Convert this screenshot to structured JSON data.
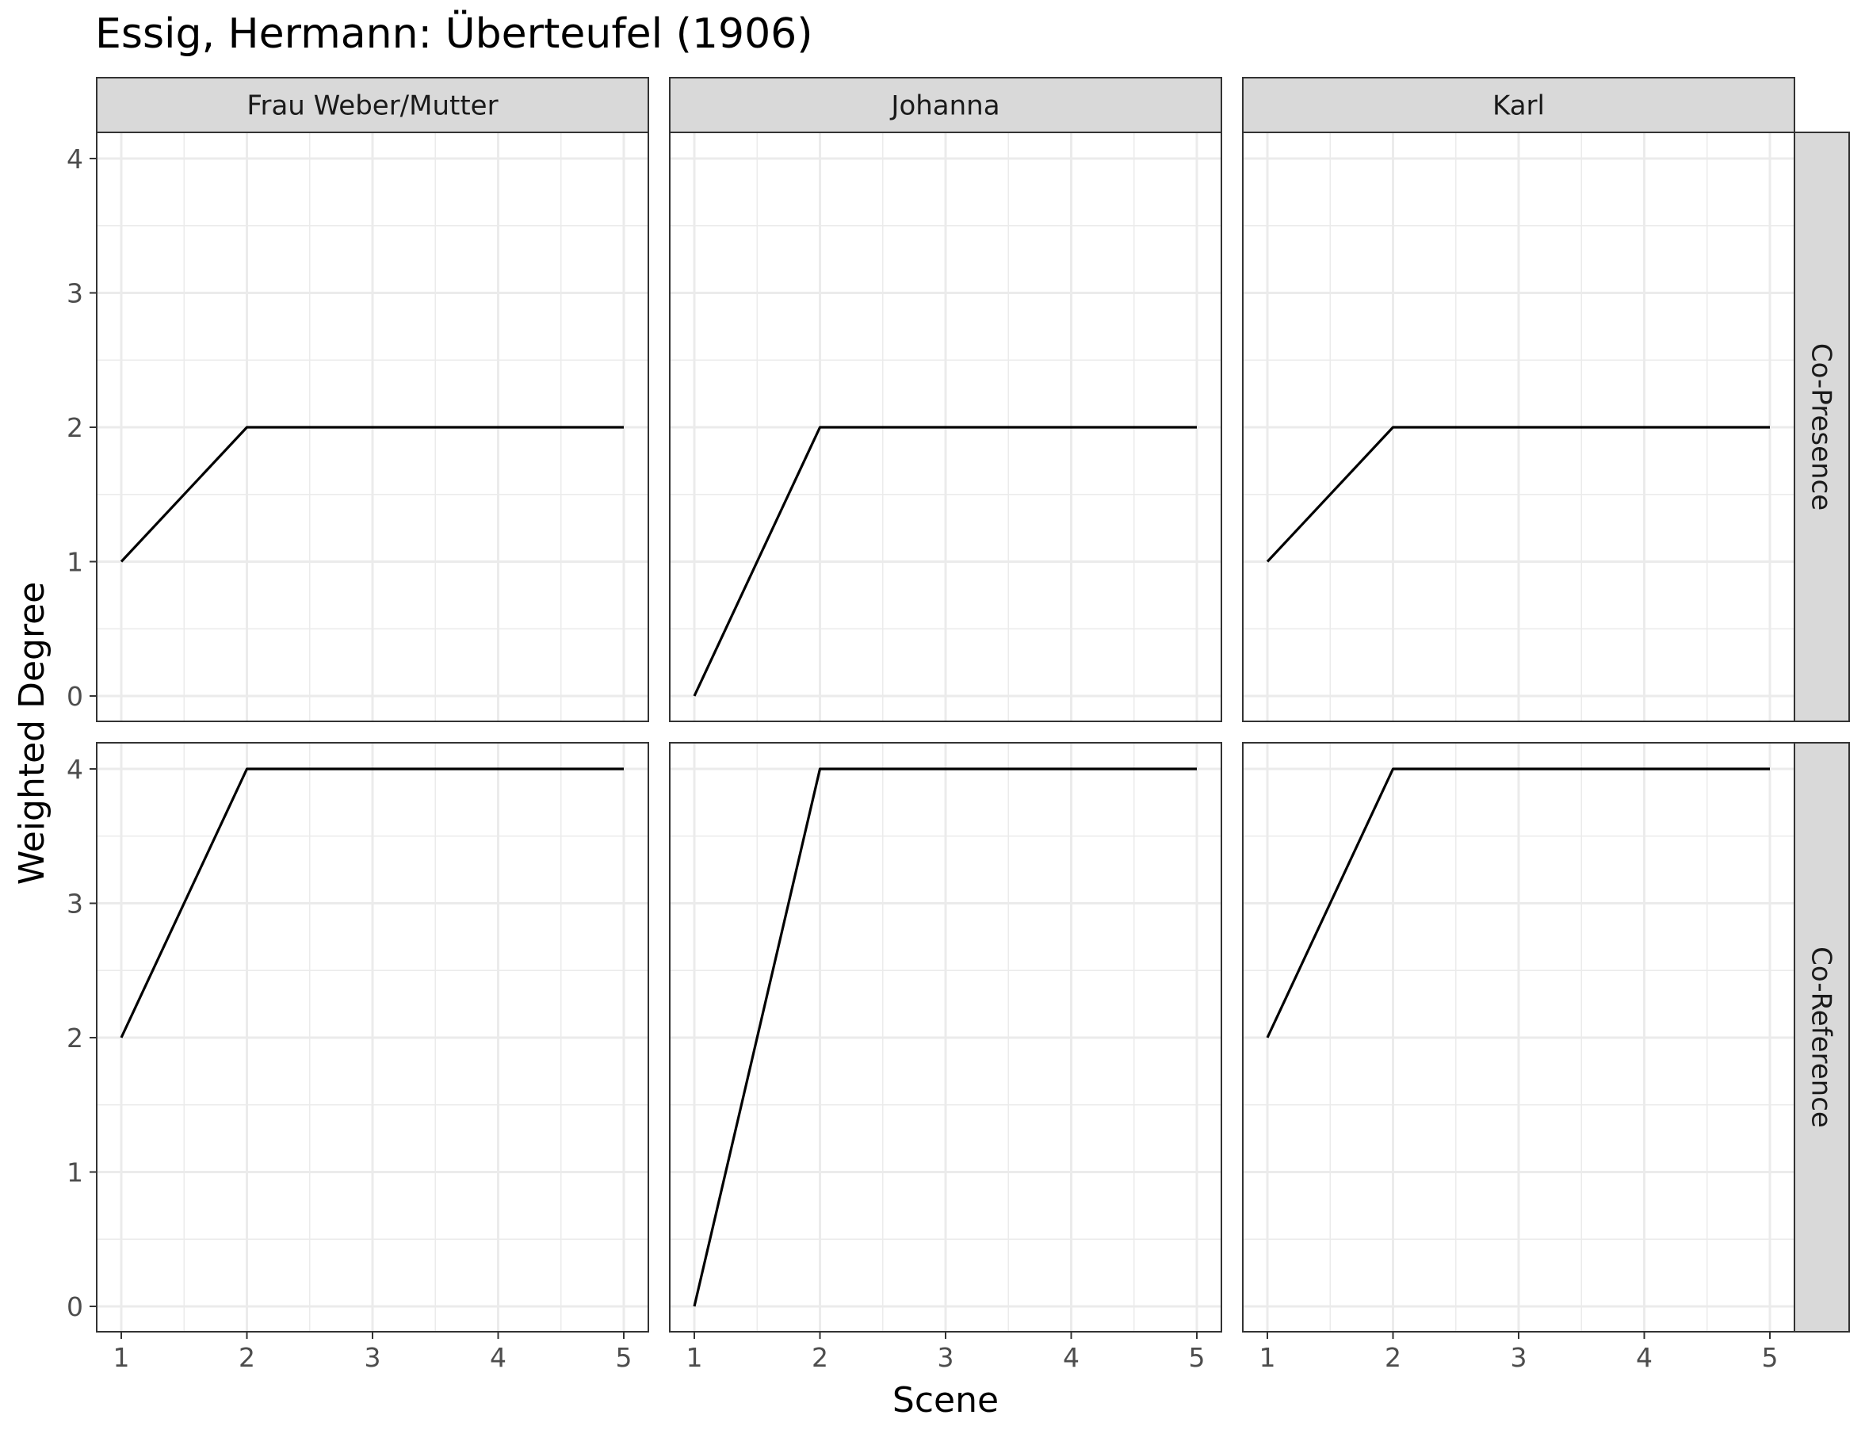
{
  "chart_data": {
    "type": "line",
    "title": "Essig, Hermann: Überteufel (1906)",
    "xlabel": "Scene",
    "ylabel": "Weighted Degree",
    "x": [
      1,
      2,
      3,
      4,
      5
    ],
    "xlim": [
      1,
      5
    ],
    "ylim": [
      0,
      4
    ],
    "x_ticks": [
      1,
      2,
      3,
      4,
      5
    ],
    "y_ticks": [
      0,
      1,
      2,
      3,
      4
    ],
    "grid": true,
    "facet_columns": [
      "Frau Weber/Mutter",
      "Johanna",
      "Karl"
    ],
    "facet_rows": [
      "Co-Presence",
      "Co-Reference"
    ],
    "panels": [
      {
        "column": "Frau Weber/Mutter",
        "row": "Co-Presence",
        "values": [
          1,
          2,
          2,
          2,
          2
        ]
      },
      {
        "column": "Johanna",
        "row": "Co-Presence",
        "values": [
          0,
          2,
          2,
          2,
          2
        ]
      },
      {
        "column": "Karl",
        "row": "Co-Presence",
        "values": [
          1,
          2,
          2,
          2,
          2
        ]
      },
      {
        "column": "Frau Weber/Mutter",
        "row": "Co-Reference",
        "values": [
          2,
          4,
          4,
          4,
          4
        ]
      },
      {
        "column": "Johanna",
        "row": "Co-Reference",
        "values": [
          0,
          4,
          4,
          4,
          4
        ]
      },
      {
        "column": "Karl",
        "row": "Co-Reference",
        "values": [
          2,
          4,
          4,
          4,
          4
        ]
      }
    ],
    "line_color": "#000000"
  }
}
